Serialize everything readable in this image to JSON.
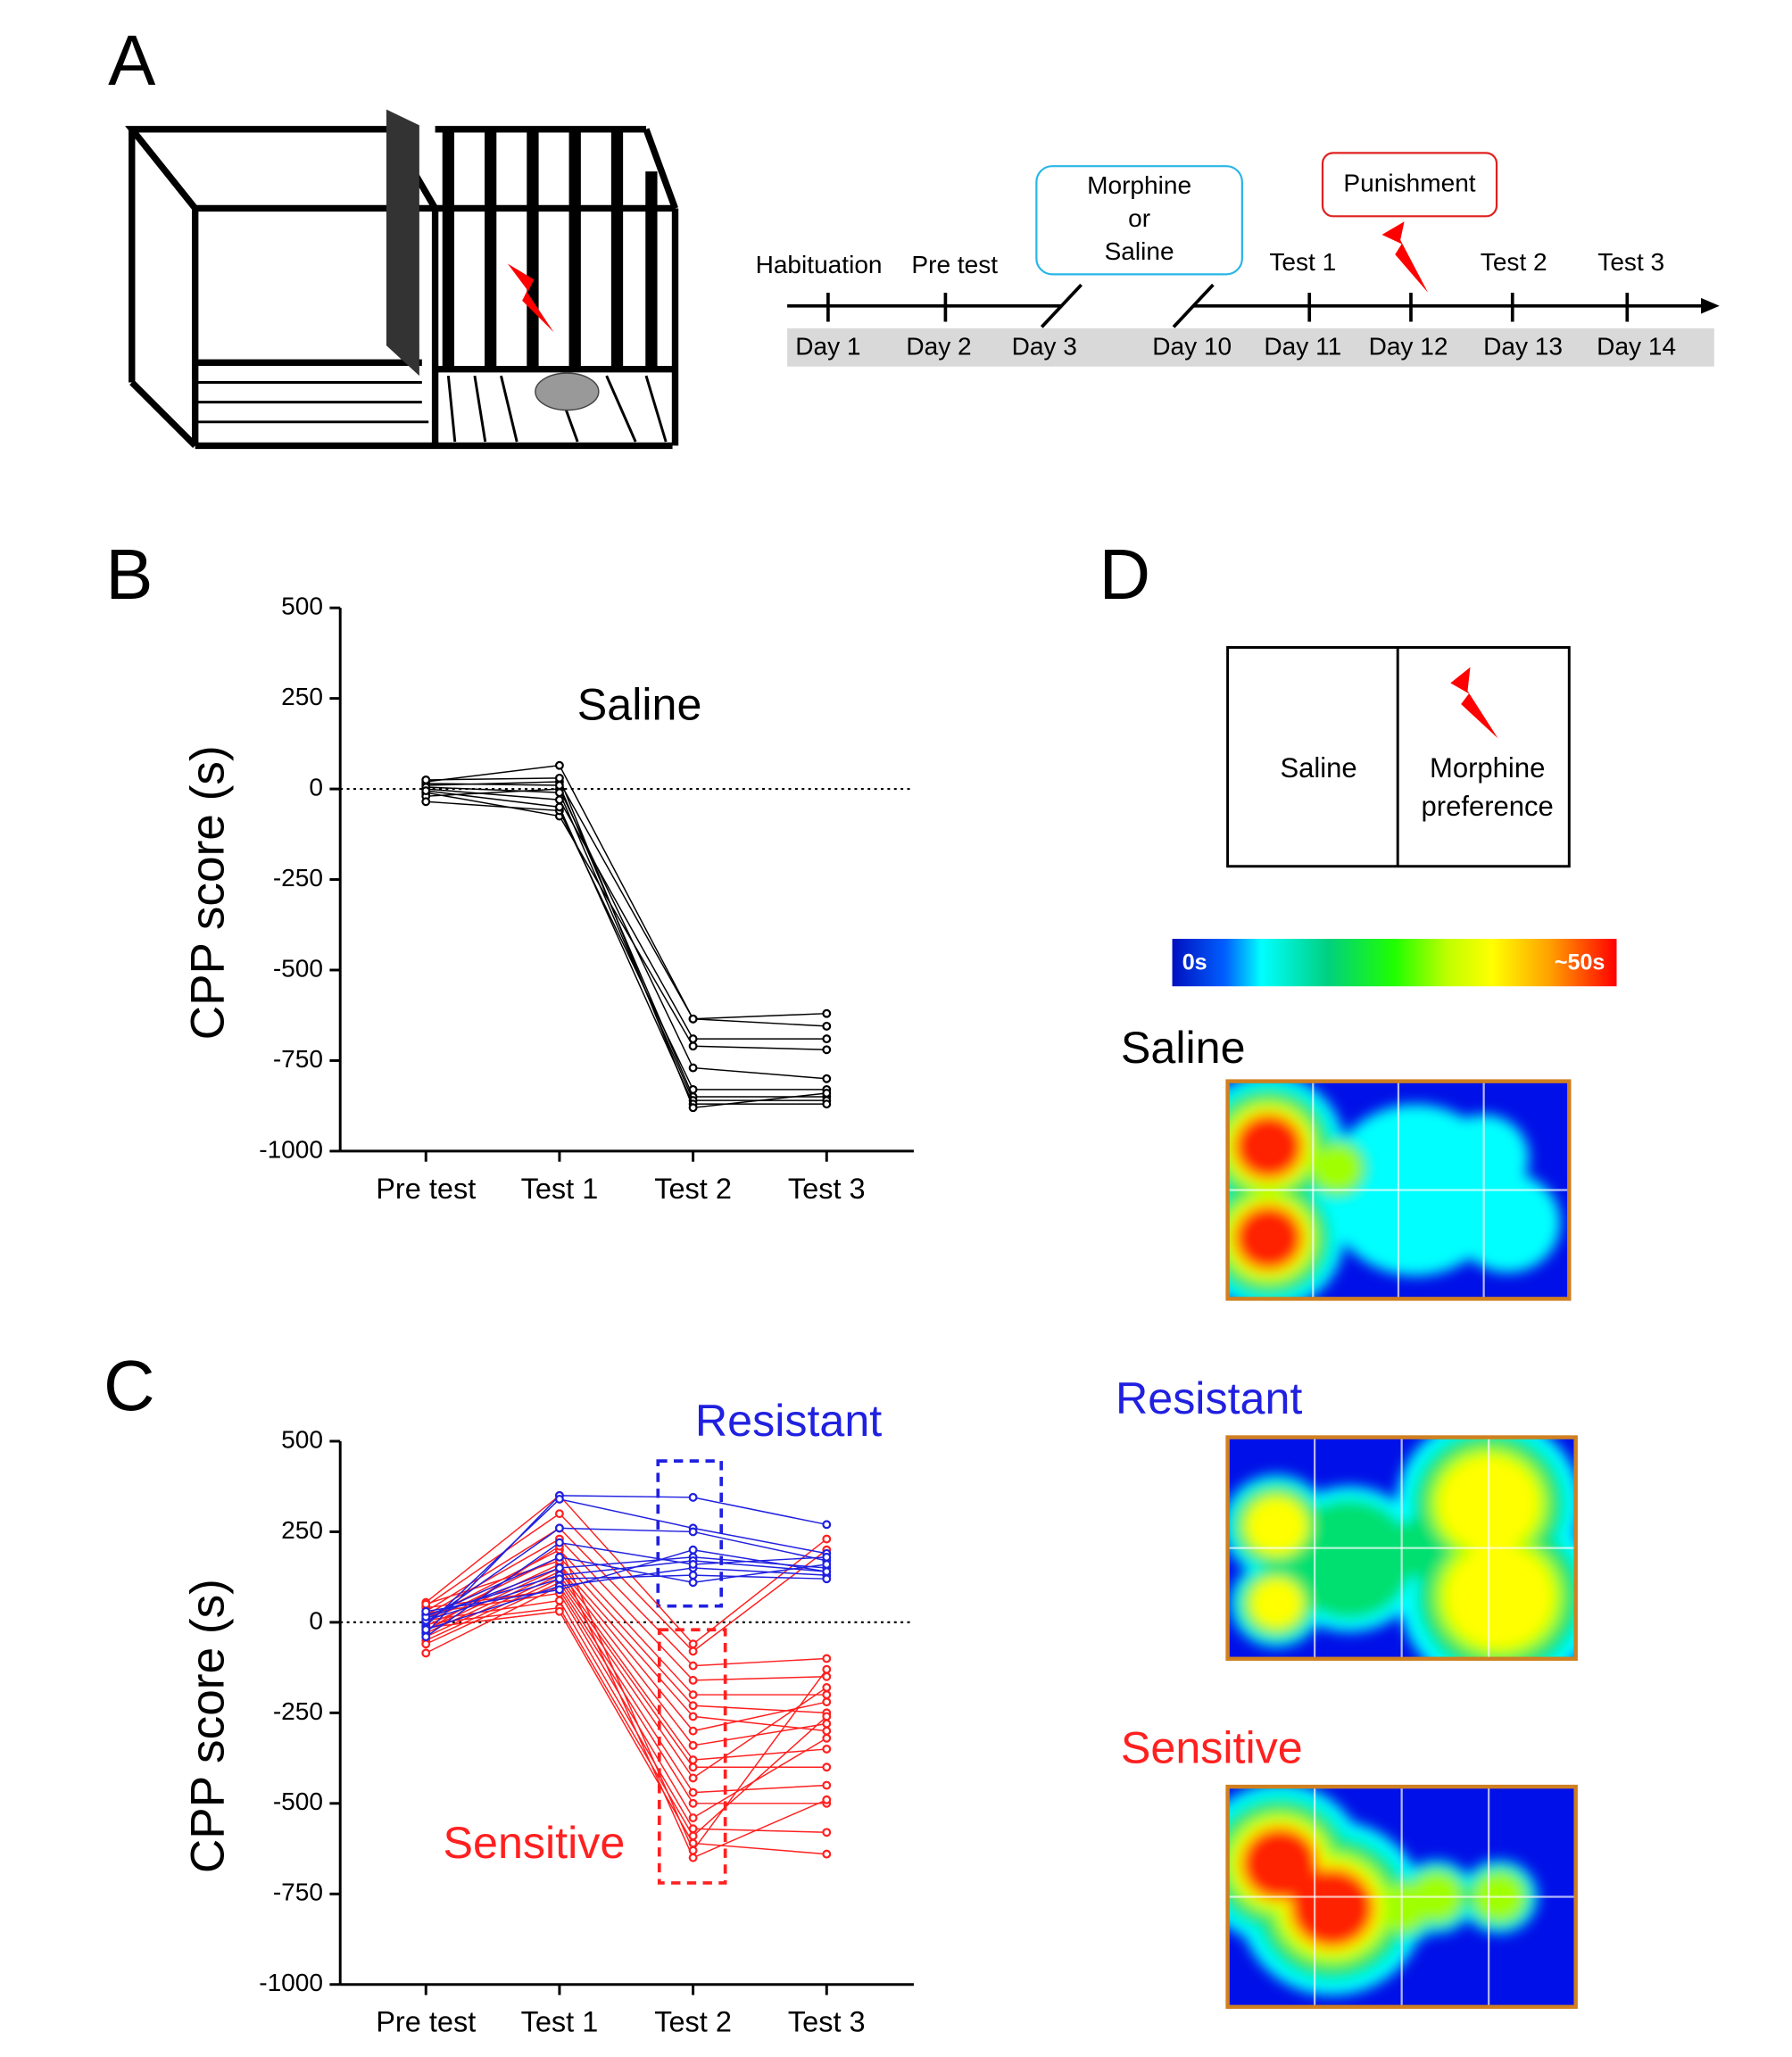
{
  "panel_labels": [
    "A",
    "B",
    "C",
    "D"
  ],
  "timeline": {
    "events": [
      "Habituation",
      "Pre test",
      "Test 1",
      "Test 2",
      "Test 3"
    ],
    "days": [
      "Day 1",
      "Day 2",
      "Day 3",
      "Day 10",
      "Day 11",
      "Day 12",
      "Day 13",
      "Day 14"
    ],
    "treatment": [
      "Morphine",
      "or",
      "Saline"
    ],
    "punishment": "Punishment"
  },
  "chart_data": [
    {
      "type": "line",
      "ylabel": "CPP score (s)",
      "categories": [
        "Pre test",
        "Test 1",
        "Test 2",
        "Test 3"
      ],
      "ylim": [
        -1000,
        500
      ],
      "yticks": [
        -1000,
        -750,
        -500,
        -250,
        0,
        250,
        500
      ],
      "series": [
        {
          "name": "Saline",
          "color": "#000000",
          "lines": [
            [
              20,
              65,
              -635,
              -620
            ],
            [
              10,
              20,
              -635,
              -655
            ],
            [
              0,
              -30,
              -690,
              -690
            ],
            [
              -10,
              -75,
              -710,
              -720
            ],
            [
              -20,
              0,
              -770,
              -800
            ],
            [
              -35,
              -60,
              -830,
              -830
            ],
            [
              15,
              10,
              -850,
              -850
            ],
            [
              5,
              -10,
              -860,
              -860
            ],
            [
              -5,
              -50,
              -870,
              -870
            ],
            [
              25,
              30,
              -880,
              -840
            ]
          ]
        }
      ]
    },
    {
      "type": "line",
      "ylabel": "CPP score (s)",
      "categories": [
        "Pre test",
        "Test 1",
        "Test 2",
        "Test 3"
      ],
      "ylim": [
        -1000,
        500
      ],
      "yticks": [
        -1000,
        -750,
        -500,
        -250,
        0,
        250,
        500
      ],
      "series": [
        {
          "name": "Sensitive",
          "color": "#ff2020",
          "lines": [
            [
              55,
              350,
              -60,
              230
            ],
            [
              45,
              300,
              -80,
              200
            ],
            [
              30,
              260,
              -120,
              -100
            ],
            [
              20,
              230,
              -160,
              -150
            ],
            [
              10,
              200,
              -200,
              -200
            ],
            [
              0,
              180,
              -230,
              -250
            ],
            [
              -10,
              160,
              -260,
              -300
            ],
            [
              -20,
              150,
              -300,
              -220
            ],
            [
              -30,
              140,
              -340,
              -280
            ],
            [
              -40,
              130,
              -380,
              -350
            ],
            [
              -50,
              120,
              -400,
              -400
            ],
            [
              -60,
              110,
              -430,
              -180
            ],
            [
              -85,
              100,
              -470,
              -450
            ],
            [
              40,
              90,
              -500,
              -500
            ],
            [
              25,
              80,
              -540,
              -320
            ],
            [
              5,
              60,
              -570,
              -580
            ],
            [
              -5,
              40,
              -590,
              -260
            ],
            [
              -15,
              30,
              -610,
              -640
            ],
            [
              -25,
              210,
              -630,
              -130
            ],
            [
              50,
              170,
              -650,
              -490
            ]
          ]
        },
        {
          "name": "Resistant",
          "color": "#2020e0",
          "lines": [
            [
              -30,
              350,
              345,
              270
            ],
            [
              -10,
              340,
              260,
              190
            ],
            [
              0,
              260,
              250,
              170
            ],
            [
              10,
              150,
              180,
              150
            ],
            [
              20,
              130,
              170,
              140
            ],
            [
              -20,
              100,
              150,
              130
            ],
            [
              5,
              120,
              130,
              120
            ],
            [
              15,
              180,
              110,
              160
            ],
            [
              -40,
              220,
              160,
              180
            ],
            [
              30,
              90,
              200,
              140
            ]
          ]
        }
      ]
    }
  ],
  "place_map": {
    "left": "Saline",
    "right": [
      "Morphine",
      "preference"
    ]
  },
  "colorbar": {
    "min_label": "0s",
    "max_label": "~50s"
  },
  "heatmaps": [
    {
      "title": "Saline",
      "color": "#000000"
    },
    {
      "title": "Resistant",
      "color": "#2020e0"
    },
    {
      "title": "Sensitive",
      "color": "#ff2020"
    }
  ]
}
